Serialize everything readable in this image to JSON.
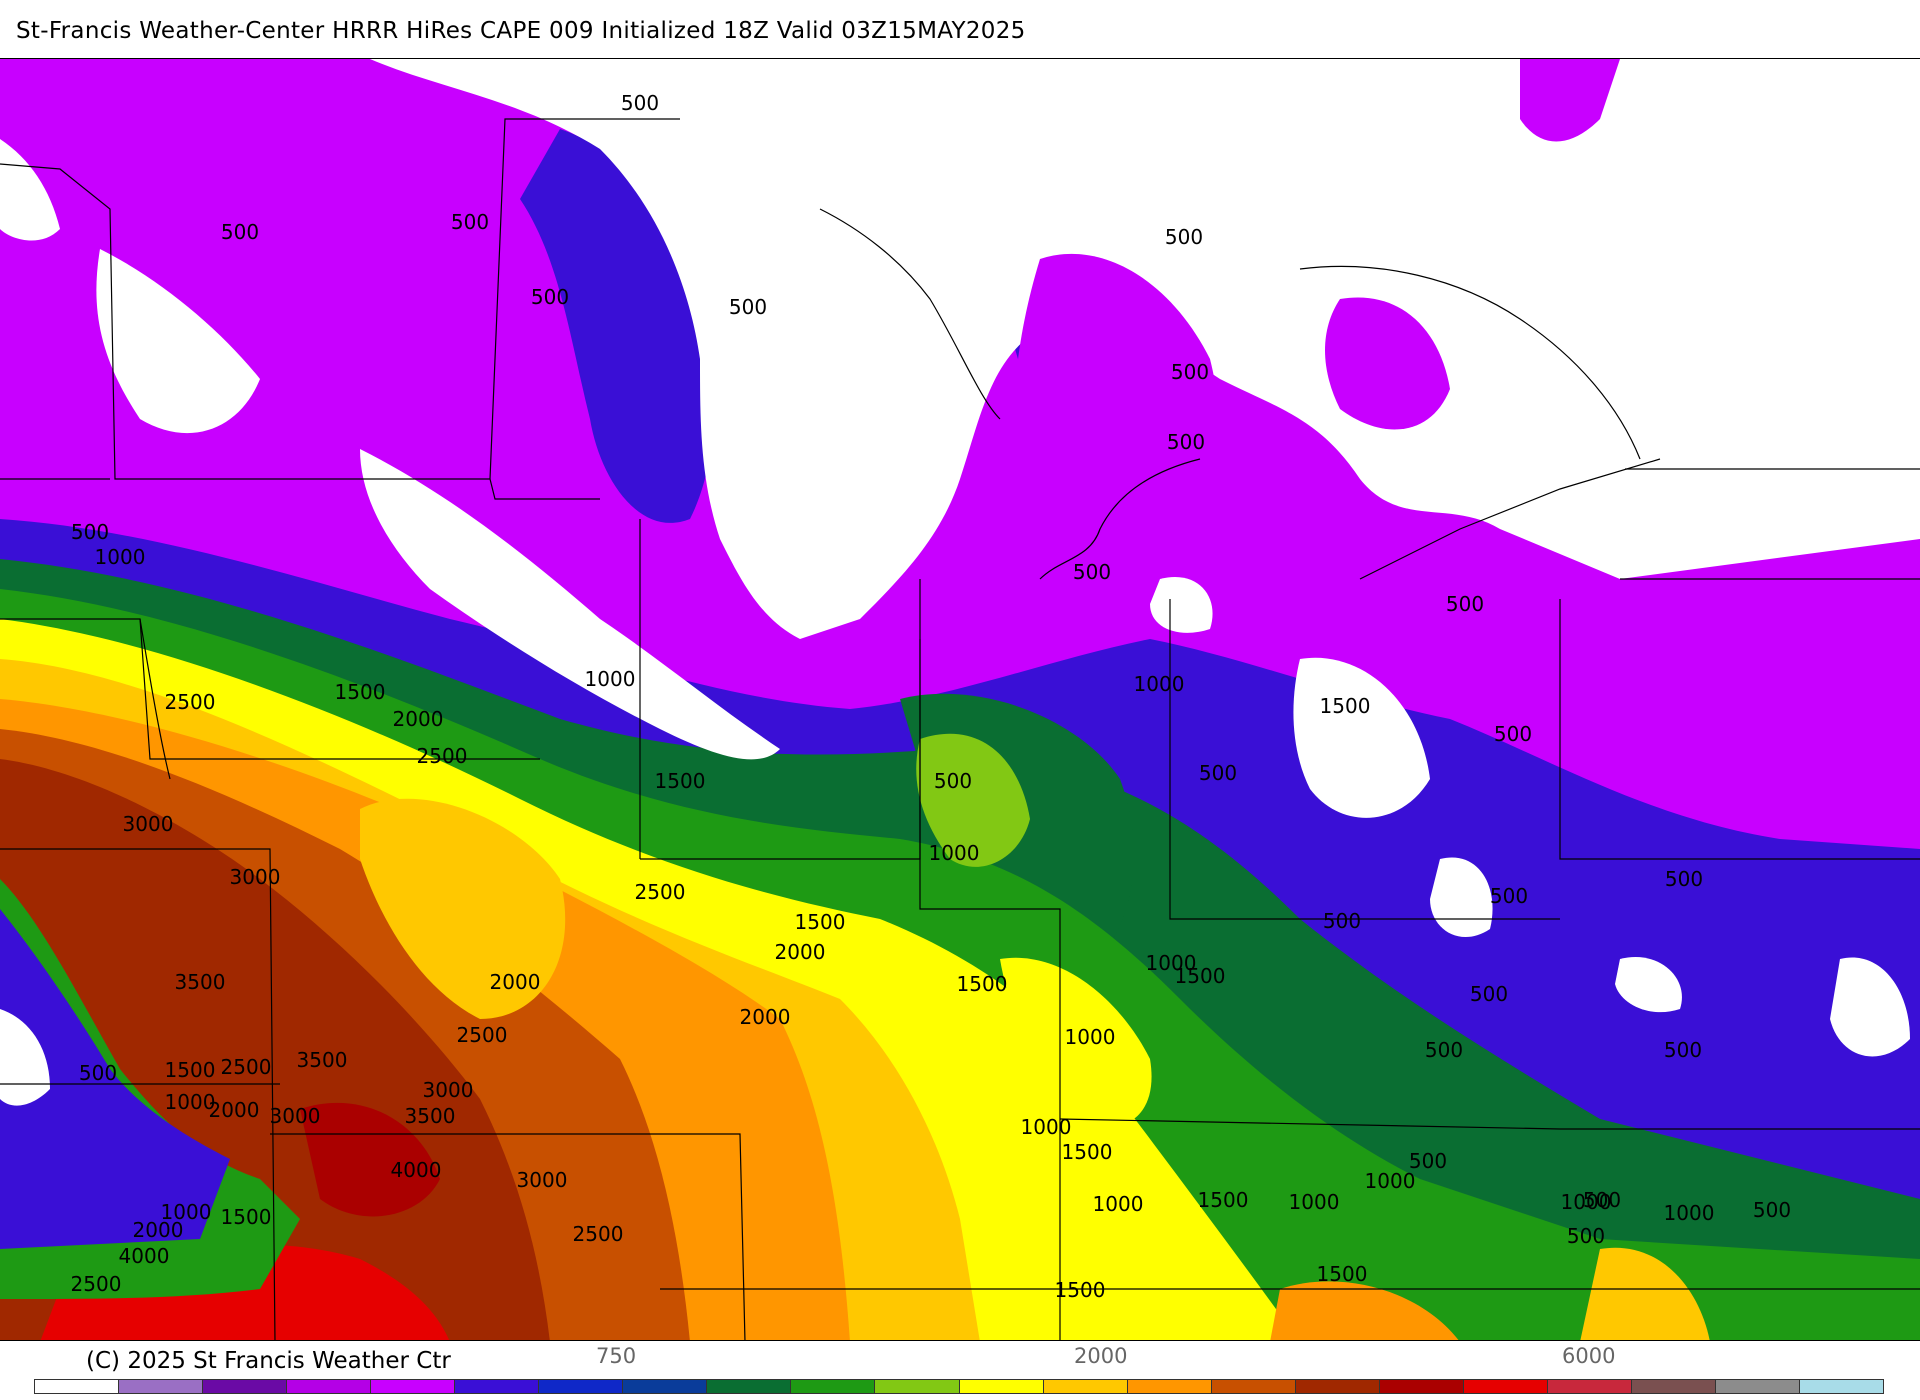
{
  "header": {
    "title": "St-Francis Weather-Center HRRR HiRes CAPE  009 Initialized  18Z Valid 03Z15MAY2025"
  },
  "footer": {
    "credit": "(C) 2025 St Francis Weather Ctr",
    "tick_labels": [
      "750",
      "2000",
      "6000"
    ]
  },
  "legend": {
    "colors": [
      "#ffffff",
      "#9a6fc4",
      "#6a0aa5",
      "#b400e6",
      "#c800ff",
      "#3a0fd6",
      "#0f28c8",
      "#0a3c9a",
      "#0a6e32",
      "#1e9a14",
      "#82c814",
      "#ffff00",
      "#ffc800",
      "#ff9600",
      "#c85000",
      "#a02800",
      "#aa0000",
      "#e60000",
      "#c8283c",
      "#7a5050",
      "#8c8c8c",
      "#a8dce8"
    ]
  },
  "map": {
    "contour_labels": [
      {
        "text": "500"
      },
      {
        "text": "500"
      },
      {
        "text": "500"
      },
      {
        "text": "500"
      },
      {
        "text": "500"
      },
      {
        "text": "500"
      },
      {
        "text": "500"
      },
      {
        "text": "1000"
      },
      {
        "text": "500"
      },
      {
        "text": "1000"
      },
      {
        "text": "1500"
      },
      {
        "text": "2000"
      },
      {
        "text": "2500"
      },
      {
        "text": "2500"
      },
      {
        "text": "1500"
      },
      {
        "text": "3000"
      },
      {
        "text": "3000"
      },
      {
        "text": "2500"
      },
      {
        "text": "1500"
      },
      {
        "text": "2000"
      },
      {
        "text": "2000"
      },
      {
        "text": "3500"
      },
      {
        "text": "2500"
      },
      {
        "text": "2000"
      },
      {
        "text": "500"
      },
      {
        "text": "1500"
      },
      {
        "text": "2500"
      },
      {
        "text": "1000"
      },
      {
        "text": "3500"
      },
      {
        "text": "3000"
      },
      {
        "text": "2000"
      },
      {
        "text": "3000"
      },
      {
        "text": "3500"
      },
      {
        "text": "4000"
      },
      {
        "text": "3000"
      },
      {
        "text": "2500"
      },
      {
        "text": "1000"
      },
      {
        "text": "1500"
      },
      {
        "text": "2000"
      },
      {
        "text": "4000"
      },
      {
        "text": "2500"
      },
      {
        "text": "1500"
      },
      {
        "text": "500"
      },
      {
        "text": "500"
      },
      {
        "text": "500"
      },
      {
        "text": "500"
      },
      {
        "text": "1000"
      },
      {
        "text": "500"
      },
      {
        "text": "500"
      },
      {
        "text": "1000"
      },
      {
        "text": "500"
      },
      {
        "text": "500"
      },
      {
        "text": "500"
      },
      {
        "text": "1000"
      },
      {
        "text": "1500"
      },
      {
        "text": "1500"
      },
      {
        "text": "500"
      },
      {
        "text": "500"
      },
      {
        "text": "1000"
      },
      {
        "text": "500"
      },
      {
        "text": "1500"
      },
      {
        "text": "1000"
      },
      {
        "text": "1000"
      },
      {
        "text": "500"
      },
      {
        "text": "1000"
      },
      {
        "text": "1000"
      },
      {
        "text": "1500"
      },
      {
        "text": "1500"
      },
      {
        "text": "500"
      },
      {
        "text": "500"
      },
      {
        "text": "1000"
      },
      {
        "text": "1000"
      },
      {
        "text": "500"
      },
      {
        "text": "1500"
      }
    ]
  }
}
